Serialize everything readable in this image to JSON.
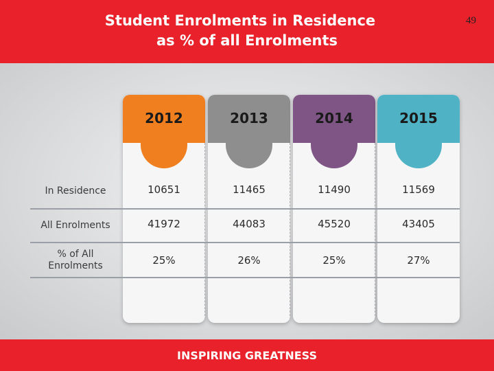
{
  "slide": {
    "title_line1": "Student Enrolments in Residence",
    "title_line2": "as % of all Enrolments",
    "page_number": "49",
    "footer": "INSPIRING GREATNESS"
  },
  "rows": [
    "In Residence",
    "All Enrolments",
    "% of All Enrolments"
  ],
  "columns": [
    {
      "year": "2012",
      "color": "#f07f1f",
      "values": [
        "10651",
        "41972",
        "25%"
      ]
    },
    {
      "year": "2013",
      "color": "#8e8e8e",
      "values": [
        "11465",
        "44083",
        "26%"
      ]
    },
    {
      "year": "2014",
      "color": "#7e5585",
      "values": [
        "11490",
        "45520",
        "25%"
      ]
    },
    {
      "year": "2015",
      "color": "#4fb3c5",
      "values": [
        "11569",
        "43405",
        "27%"
      ]
    }
  ]
}
